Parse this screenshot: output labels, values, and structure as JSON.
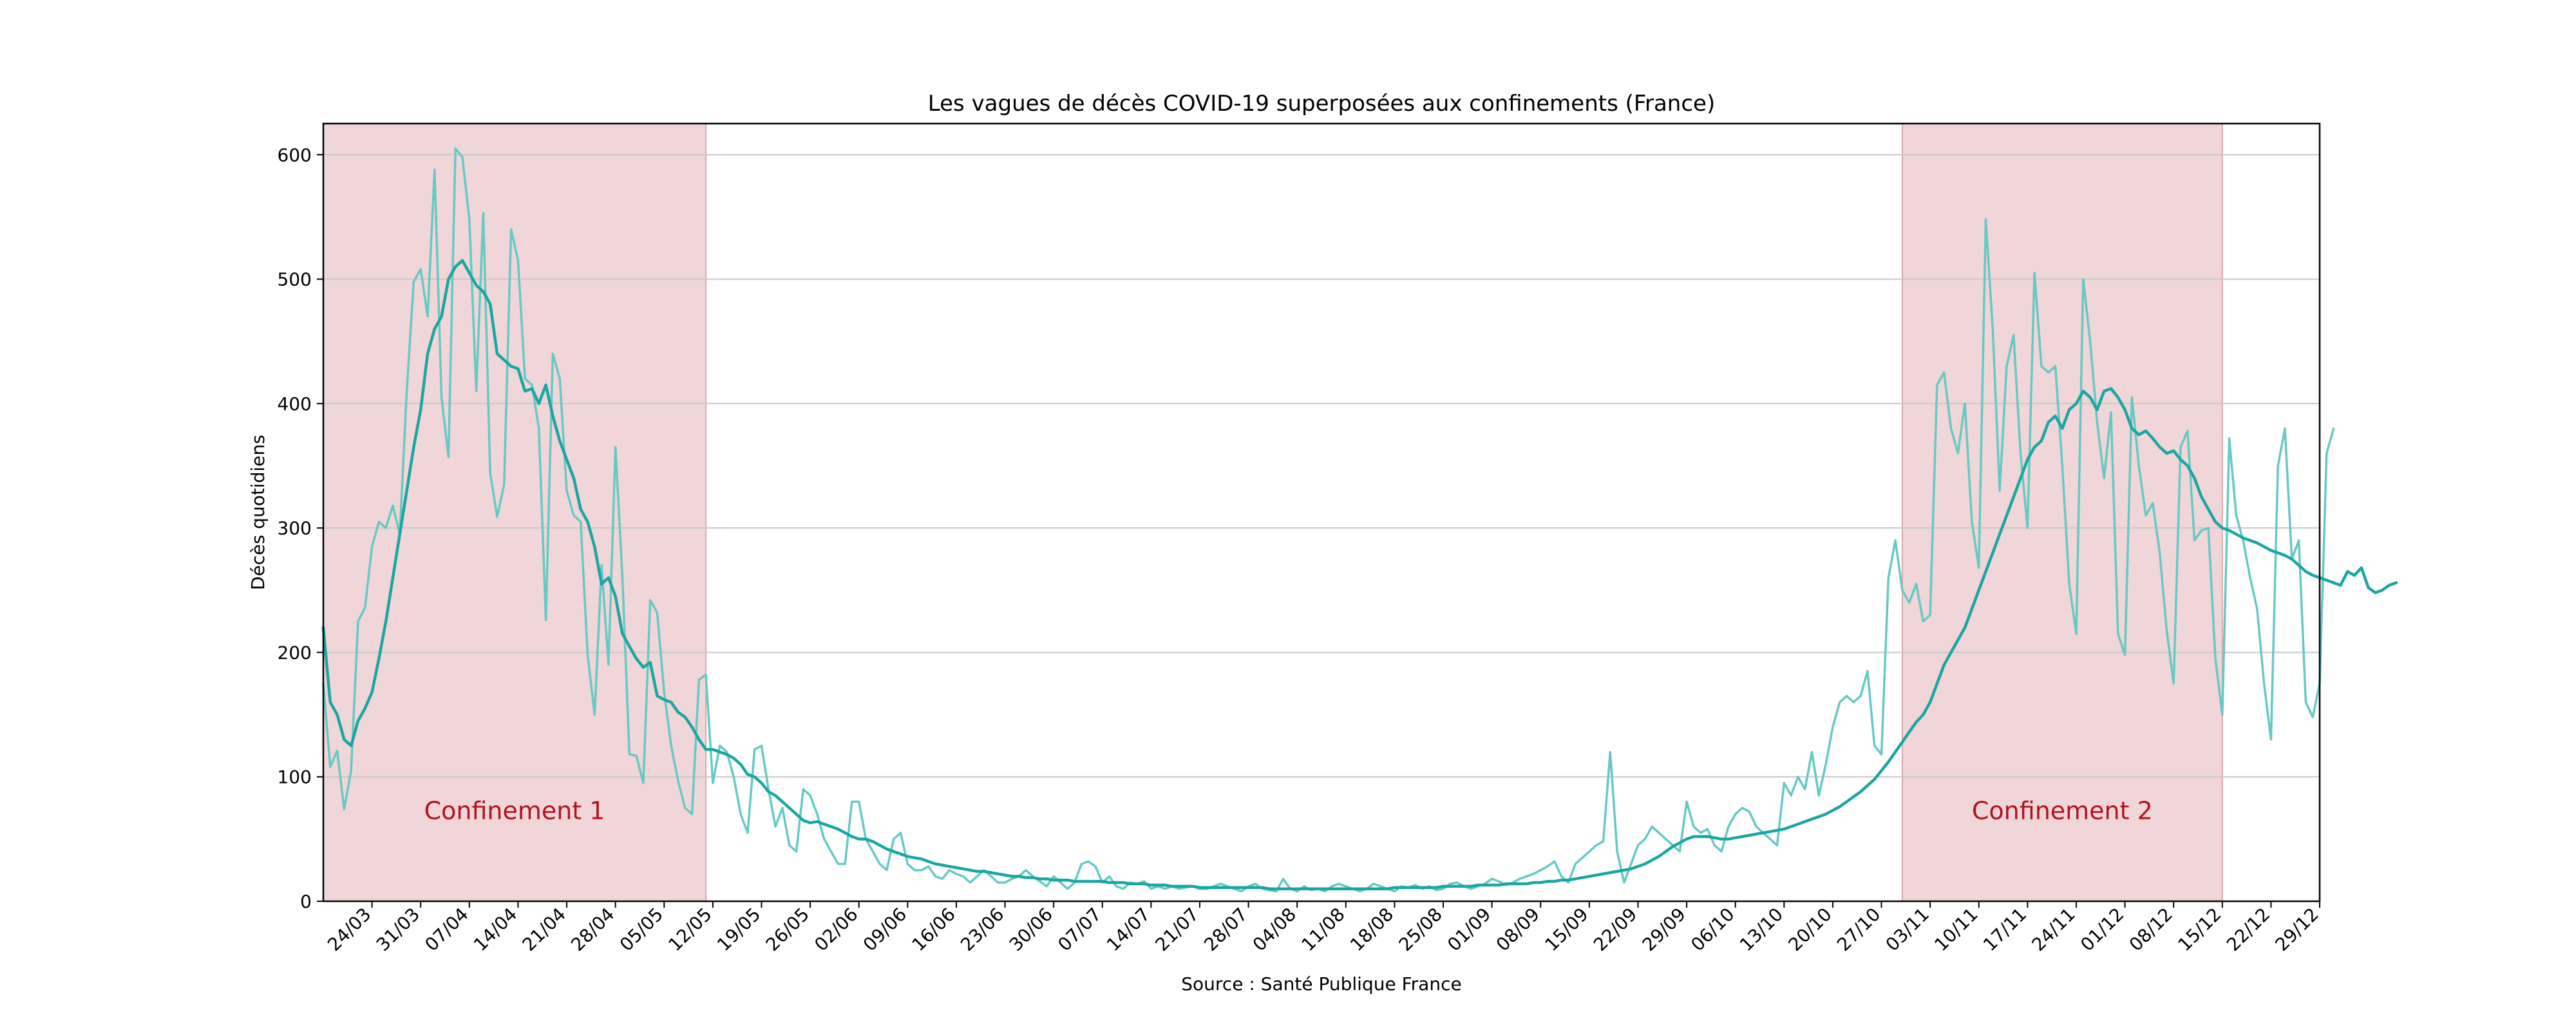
{
  "chart_data": {
    "type": "line",
    "title": "Les vagues de décès COVID-19 superposées aux confinements (France)",
    "xlabel": "Source : Santé Publique France",
    "ylabel": "Décès quotidiens",
    "ylim": [
      0,
      625
    ],
    "yticks": [
      0,
      100,
      200,
      300,
      400,
      500,
      600
    ],
    "grid": "horizontal",
    "xticks": [
      "24/03",
      "31/03",
      "07/04",
      "14/04",
      "21/04",
      "28/04",
      "05/05",
      "12/05",
      "19/05",
      "26/05",
      "02/06",
      "09/06",
      "16/06",
      "23/06",
      "30/06",
      "07/07",
      "14/07",
      "21/07",
      "28/07",
      "04/08",
      "11/08",
      "18/08",
      "25/08",
      "01/09",
      "08/09",
      "15/09",
      "22/09",
      "29/09",
      "06/10",
      "13/10",
      "20/10",
      "27/10",
      "03/11",
      "10/11",
      "17/11",
      "24/11",
      "01/12",
      "08/12",
      "15/12",
      "22/12",
      "29/12"
    ],
    "confinements": [
      {
        "label": "Confinement 1",
        "start": "17/03",
        "end": "11/05",
        "color": "#f0d6d8"
      },
      {
        "label": "Confinement 2",
        "start": "30/10",
        "end": "15/12",
        "color": "#f0d6d8"
      }
    ],
    "series": [
      {
        "kind": "daily",
        "color": "#66c9c5",
        "x_start": "17/03",
        "values": [
          175,
          108,
          121,
          74,
          105,
          225,
          236,
          285,
          305,
          300,
          318,
          295,
          410,
          498,
          508,
          470,
          588,
          405,
          357,
          605,
          598,
          548,
          410,
          553,
          344,
          309,
          335,
          540,
          515,
          420,
          415,
          380,
          226,
          440,
          420,
          330,
          310,
          305,
          198,
          150,
          270,
          190,
          365,
          260,
          118,
          117,
          95,
          242,
          232,
          168,
          125,
          97,
          75,
          70,
          178,
          182,
          95,
          125,
          120,
          100,
          70,
          55,
          122,
          125,
          90,
          60,
          75,
          45,
          40,
          90,
          85,
          70,
          50,
          40,
          30,
          30,
          80,
          80,
          50,
          40,
          30,
          25,
          50,
          55,
          30,
          25,
          25,
          28,
          20,
          18,
          25,
          22,
          20,
          15,
          20,
          25,
          20,
          15,
          15,
          18,
          20,
          25,
          20,
          16,
          12,
          20,
          15,
          10,
          15,
          30,
          32,
          28,
          15,
          20,
          12,
          10,
          15,
          14,
          16,
          10,
          12,
          10,
          12,
          10,
          11,
          12,
          10,
          10,
          12,
          14,
          12,
          10,
          8,
          12,
          14,
          10,
          9,
          8,
          18,
          10,
          8,
          12,
          9,
          10,
          8,
          12,
          14,
          12,
          10,
          8,
          10,
          14,
          12,
          10,
          8,
          12,
          11,
          13,
          10,
          12,
          9,
          10,
          14,
          15,
          12,
          10,
          12,
          14,
          18,
          16,
          13,
          15,
          18,
          20,
          22,
          25,
          28,
          32,
          20,
          15,
          30,
          35,
          40,
          45,
          48,
          120,
          40,
          15,
          30,
          45,
          50,
          60,
          55,
          50,
          45,
          40,
          80,
          60,
          55,
          58,
          45,
          40,
          60,
          70,
          75,
          72,
          60,
          55,
          50,
          45,
          95,
          85,
          100,
          90,
          120,
          85,
          110,
          140,
          160,
          165,
          160,
          165,
          185,
          125,
          118,
          260,
          290,
          250,
          240,
          255,
          225,
          230,
          415,
          425,
          380,
          360,
          400,
          305,
          268,
          548,
          460,
          330,
          430,
          455,
          360,
          300,
          505,
          430,
          425,
          430,
          350,
          255,
          215,
          500,
          450,
          385,
          340,
          393,
          215,
          198,
          405,
          350,
          310,
          320,
          280,
          218,
          175,
          365,
          378,
          290,
          298,
          300,
          195,
          150,
          372,
          310,
          290,
          260,
          235,
          175,
          130,
          350,
          380,
          275,
          290,
          160,
          148,
          175,
          360,
          380
        ]
      },
      {
        "kind": "moving-average",
        "color": "#1aa6a2",
        "x_start": "17/03",
        "values": [
          220,
          160,
          150,
          130,
          125,
          145,
          155,
          168,
          195,
          225,
          260,
          295,
          330,
          365,
          395,
          440,
          460,
          470,
          500,
          510,
          515,
          505,
          495,
          490,
          480,
          440,
          435,
          430,
          428,
          410,
          412,
          400,
          415,
          390,
          370,
          355,
          340,
          315,
          305,
          285,
          255,
          260,
          245,
          215,
          205,
          195,
          188,
          192,
          165,
          162,
          160,
          152,
          148,
          140,
          130,
          122,
          122,
          120,
          118,
          115,
          110,
          102,
          100,
          95,
          88,
          85,
          80,
          75,
          70,
          65,
          63,
          64,
          62,
          60,
          58,
          55,
          52,
          50,
          50,
          48,
          45,
          42,
          40,
          38,
          36,
          35,
          34,
          32,
          30,
          29,
          28,
          27,
          26,
          25,
          24,
          24,
          23,
          22,
          21,
          20,
          20,
          19,
          19,
          18,
          18,
          17,
          17,
          17,
          16,
          16,
          16,
          16,
          16,
          15,
          15,
          15,
          14,
          14,
          14,
          13,
          13,
          13,
          12,
          12,
          12,
          12,
          11,
          11,
          11,
          11,
          11,
          11,
          11,
          11,
          11,
          11,
          10,
          10,
          10,
          10,
          10,
          10,
          10,
          10,
          10,
          10,
          10,
          10,
          10,
          10,
          10,
          10,
          10,
          10,
          11,
          11,
          11,
          11,
          11,
          11,
          11,
          12,
          12,
          12,
          12,
          12,
          13,
          13,
          13,
          13,
          14,
          14,
          14,
          14,
          15,
          15,
          16,
          16,
          17,
          17,
          18,
          19,
          20,
          21,
          22,
          23,
          24,
          25,
          26,
          28,
          30,
          33,
          36,
          40,
          44,
          47,
          50,
          52,
          52,
          52,
          51,
          50,
          50,
          51,
          52,
          53,
          54,
          55,
          56,
          57,
          58,
          60,
          62,
          64,
          66,
          68,
          70,
          73,
          76,
          80,
          84,
          88,
          93,
          98,
          105,
          112,
          120,
          128,
          136,
          144,
          150,
          160,
          175,
          190,
          200,
          210,
          220,
          235,
          250,
          265,
          280,
          295,
          310,
          325,
          340,
          355,
          365,
          370,
          385,
          390,
          380,
          395,
          400,
          410,
          405,
          395,
          410,
          412,
          405,
          395,
          380,
          375,
          378,
          372,
          365,
          360,
          362,
          355,
          350,
          340,
          325,
          315,
          305,
          300,
          298,
          295,
          292,
          290,
          288,
          285,
          282,
          280,
          278,
          275,
          270,
          265,
          262,
          260,
          258,
          256,
          254,
          265,
          262,
          268,
          252,
          248,
          250,
          254,
          256
        ]
      }
    ]
  }
}
